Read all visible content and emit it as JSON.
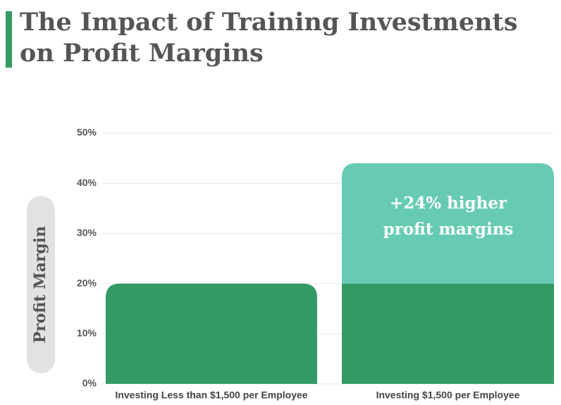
{
  "chart_data": {
    "type": "bar",
    "stacked": true,
    "title": "The Impact of Training Investments on Profit Margins",
    "y_label": "Profit Margin",
    "categories": [
      "Investing Less than $1,500 per Employee",
      "Investing $1,500 per Employee"
    ],
    "series": [
      {
        "color": "#349a65",
        "values": [
          20,
          20
        ]
      },
      {
        "color": "#67cbb4",
        "values": [
          null,
          24
        ]
      }
    ],
    "annotation": "+24% higher profit margins",
    "ylim": [
      0,
      50
    ],
    "yticks": [
      {
        "value": 0,
        "label": "0%"
      },
      {
        "value": 10,
        "label": "10%"
      },
      {
        "value": 20,
        "label": "20%"
      },
      {
        "value": 30,
        "label": "30%"
      },
      {
        "value": 40,
        "label": "40%"
      },
      {
        "value": 50,
        "label": "50%"
      }
    ],
    "grid": true
  }
}
